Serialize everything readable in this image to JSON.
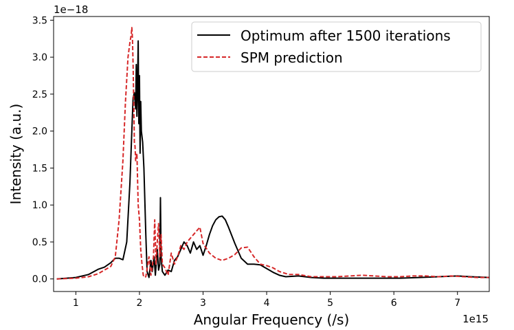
{
  "chart_data": {
    "type": "line",
    "title": "",
    "xlabel": "Angular Frequency (/s)",
    "ylabel": "Intensity (a.u.)",
    "x_offset_label": "1e15",
    "y_offset_label": "1e−18",
    "xlim": [
      0.65,
      7.5
    ],
    "ylim": [
      -0.17,
      3.55
    ],
    "xticks": [
      1,
      2,
      3,
      4,
      5,
      6,
      7
    ],
    "xtick_labels": [
      "1",
      "2",
      "3",
      "4",
      "5",
      "6",
      "7"
    ],
    "yticks": [
      0.0,
      0.5,
      1.0,
      1.5,
      2.0,
      2.5,
      3.0,
      3.5
    ],
    "ytick_labels": [
      "0.0",
      "0.5",
      "1.0",
      "1.5",
      "2.0",
      "2.5",
      "3.0",
      "3.5"
    ],
    "grid": false,
    "legend_position": "top-right",
    "series": [
      {
        "name": "Optimum after 1500 iterations",
        "color": "#000000",
        "style": "solid",
        "x": [
          0.7,
          1.0,
          1.2,
          1.35,
          1.45,
          1.55,
          1.62,
          1.68,
          1.74,
          1.8,
          1.85,
          1.88,
          1.9,
          1.92,
          1.94,
          1.95,
          1.96,
          1.97,
          1.98,
          1.99,
          2.0,
          2.01,
          2.02,
          2.03,
          2.05,
          2.07,
          2.1,
          2.12,
          2.15,
          2.18,
          2.2,
          2.23,
          2.25,
          2.28,
          2.3,
          2.32,
          2.33,
          2.34,
          2.36,
          2.4,
          2.45,
          2.5,
          2.55,
          2.6,
          2.65,
          2.7,
          2.75,
          2.8,
          2.85,
          2.9,
          2.95,
          3.0,
          3.05,
          3.1,
          3.15,
          3.2,
          3.25,
          3.3,
          3.35,
          3.4,
          3.5,
          3.6,
          3.7,
          3.8,
          3.9,
          4.0,
          4.1,
          4.2,
          4.3,
          4.5,
          4.7,
          4.9,
          5.1,
          5.3,
          5.5,
          5.8,
          6.1,
          6.4,
          6.7,
          7.0,
          7.2,
          7.5
        ],
        "y": [
          0.0,
          0.02,
          0.06,
          0.13,
          0.16,
          0.22,
          0.28,
          0.28,
          0.26,
          0.5,
          1.3,
          2.0,
          2.45,
          2.52,
          2.3,
          2.9,
          2.2,
          2.6,
          3.22,
          2.1,
          2.75,
          1.7,
          2.4,
          2.0,
          1.85,
          1.5,
          0.6,
          0.1,
          0.02,
          0.25,
          0.1,
          0.3,
          0.05,
          0.4,
          0.12,
          0.2,
          1.1,
          0.3,
          0.1,
          0.05,
          0.12,
          0.1,
          0.25,
          0.3,
          0.4,
          0.5,
          0.45,
          0.35,
          0.5,
          0.4,
          0.45,
          0.32,
          0.45,
          0.6,
          0.72,
          0.8,
          0.84,
          0.85,
          0.8,
          0.7,
          0.48,
          0.28,
          0.2,
          0.2,
          0.19,
          0.14,
          0.09,
          0.05,
          0.03,
          0.04,
          0.02,
          0.01,
          0.01,
          0.01,
          0.01,
          0.01,
          0.01,
          0.02,
          0.03,
          0.04,
          0.03,
          0.02
        ]
      },
      {
        "name": "SPM prediction",
        "color": "#d62728",
        "style": "dashed",
        "x": [
          0.7,
          1.0,
          1.2,
          1.35,
          1.45,
          1.55,
          1.62,
          1.68,
          1.74,
          1.78,
          1.82,
          1.85,
          1.87,
          1.88,
          1.89,
          1.9,
          1.91,
          1.92,
          1.93,
          1.94,
          1.96,
          1.98,
          2.0,
          2.02,
          2.04,
          2.06,
          2.08,
          2.1,
          2.15,
          2.18,
          2.2,
          2.22,
          2.24,
          2.26,
          2.28,
          2.3,
          2.32,
          2.34,
          2.36,
          2.4,
          2.45,
          2.5,
          2.55,
          2.6,
          2.65,
          2.7,
          2.75,
          2.8,
          2.85,
          2.9,
          2.95,
          3.0,
          3.1,
          3.2,
          3.3,
          3.4,
          3.5,
          3.6,
          3.7,
          3.8,
          3.9,
          4.0,
          4.1,
          4.2,
          4.35,
          4.5,
          4.7,
          4.9,
          5.1,
          5.3,
          5.5,
          5.7,
          5.9,
          6.1,
          6.3,
          6.5,
          6.7,
          6.9,
          7.1,
          7.3,
          7.5
        ],
        "y": [
          0.0,
          0.01,
          0.03,
          0.07,
          0.12,
          0.17,
          0.3,
          0.8,
          1.6,
          2.4,
          3.0,
          3.2,
          3.3,
          3.4,
          3.25,
          2.9,
          2.4,
          1.85,
          1.8,
          1.6,
          1.7,
          1.0,
          0.8,
          0.4,
          0.2,
          0.05,
          0.02,
          0.03,
          0.3,
          0.05,
          0.15,
          0.3,
          0.8,
          0.2,
          0.5,
          0.75,
          0.3,
          0.6,
          0.2,
          0.15,
          0.05,
          0.35,
          0.2,
          0.3,
          0.45,
          0.4,
          0.5,
          0.55,
          0.6,
          0.65,
          0.7,
          0.48,
          0.35,
          0.28,
          0.25,
          0.28,
          0.33,
          0.42,
          0.43,
          0.3,
          0.2,
          0.18,
          0.15,
          0.1,
          0.06,
          0.06,
          0.03,
          0.03,
          0.03,
          0.04,
          0.05,
          0.04,
          0.03,
          0.03,
          0.04,
          0.04,
          0.03,
          0.04,
          0.03,
          0.02,
          0.02
        ]
      }
    ]
  }
}
